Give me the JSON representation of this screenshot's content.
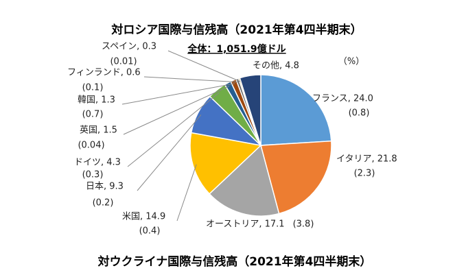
{
  "chart_data": {
    "type": "pie",
    "title": "対ロシア国際与信残高（2021年第4四半期末）",
    "subtitle": "全体：1,051.9億ドル",
    "unit_label": "（%）",
    "values": [
      24.0,
      21.8,
      17.1,
      14.9,
      9.3,
      4.3,
      1.5,
      1.3,
      0.6,
      0.3,
      4.8
    ],
    "value_labels": [
      "フランス, 24.0",
      "イタリア, 21.8",
      "オーストリア, 17.1",
      "米国, 14.9",
      "日本, 9.3",
      "ドイツ, 4.3",
      "英国, 1.5",
      "韓国, 1.3",
      "フィンランド, 0.6",
      "スペイン, 0.3",
      "その他, 4.8"
    ],
    "changes": [
      0.8,
      2.3,
      3.8,
      0.4,
      0.2,
      0.3,
      0.04,
      0.7,
      0.1,
      0.01,
      null
    ],
    "change_labels": [
      "(0.8)",
      "(2.3)",
      "(3.8)",
      "(0.4)",
      "(0.2)",
      "(0.3)",
      "(0.04)",
      "(0.7)",
      "(0.1)",
      "(0.01)",
      null
    ],
    "colors": [
      "#5b9bd5",
      "#ed7d31",
      "#a5a5a5",
      "#ffc000",
      "#4472c4",
      "#70ad47",
      "#255e91",
      "#9e480e",
      "#636363",
      "#997300",
      "#264478"
    ],
    "next_title": "対ウクライナ国際与信残高（2021年第4四半期末）"
  }
}
